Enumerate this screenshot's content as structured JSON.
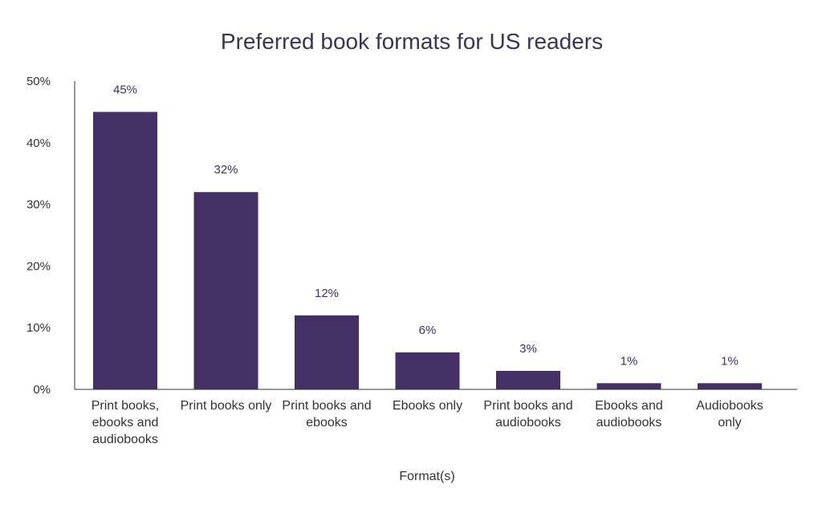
{
  "chart_data": {
    "type": "bar",
    "title": "Preferred book formats for US readers",
    "xlabel": "Format(s)",
    "ylabel": "",
    "ylim": [
      0,
      50
    ],
    "y_ticks": [
      {
        "value": 0,
        "label": "0%"
      },
      {
        "value": 10,
        "label": "10%"
      },
      {
        "value": 20,
        "label": "20%"
      },
      {
        "value": 30,
        "label": "30%"
      },
      {
        "value": 40,
        "label": "40%"
      },
      {
        "value": 50,
        "label": "50%"
      }
    ],
    "categories": [
      [
        "Print books,",
        "ebooks and",
        "audiobooks"
      ],
      [
        "Print books only"
      ],
      [
        "Print books and",
        "ebooks"
      ],
      [
        "Ebooks only"
      ],
      [
        "Print books and",
        "audiobooks"
      ],
      [
        "Ebooks and",
        "audiobooks"
      ],
      [
        "Audiobooks",
        "only"
      ]
    ],
    "values": [
      45,
      32,
      12,
      6,
      3,
      1,
      1
    ],
    "value_labels": [
      "45%",
      "32%",
      "12%",
      "6%",
      "3%",
      "1%",
      "1%"
    ],
    "grid": false,
    "legend": "none",
    "bar_color": "#433064",
    "axis_color": "#333333"
  }
}
